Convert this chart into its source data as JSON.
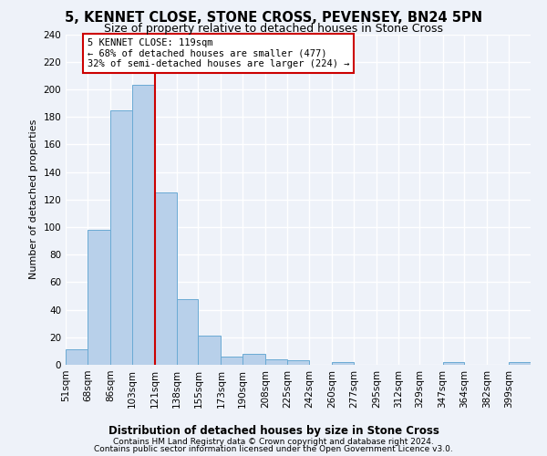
{
  "title1": "5, KENNET CLOSE, STONE CROSS, PEVENSEY, BN24 5PN",
  "title2": "Size of property relative to detached houses in Stone Cross",
  "xlabel": "Distribution of detached houses by size in Stone Cross",
  "ylabel": "Number of detached properties",
  "bar_edges": [
    51,
    68,
    86,
    103,
    121,
    138,
    155,
    173,
    190,
    208,
    225,
    242,
    260,
    277,
    295,
    312,
    329,
    347,
    364,
    382,
    399
  ],
  "bar_heights": [
    11,
    98,
    185,
    203,
    125,
    48,
    21,
    6,
    8,
    4,
    3,
    0,
    2,
    0,
    0,
    0,
    0,
    2,
    0,
    0,
    2
  ],
  "bar_color": "#b8d0ea",
  "bar_edge_color": "#6aaad4",
  "red_line_x": 121,
  "annotation_line1": "5 KENNET CLOSE: 119sqm",
  "annotation_line2": "← 68% of detached houses are smaller (477)",
  "annotation_line3": "32% of semi-detached houses are larger (224) →",
  "annotation_box_color": "#ffffff",
  "annotation_border_color": "#cc0000",
  "ylim": [
    0,
    240
  ],
  "footer1": "Contains HM Land Registry data © Crown copyright and database right 2024.",
  "footer2": "Contains public sector information licensed under the Open Government Licence v3.0.",
  "bg_color": "#eef2f9",
  "grid_color": "#ffffff",
  "title1_fontsize": 10.5,
  "title2_fontsize": 9
}
